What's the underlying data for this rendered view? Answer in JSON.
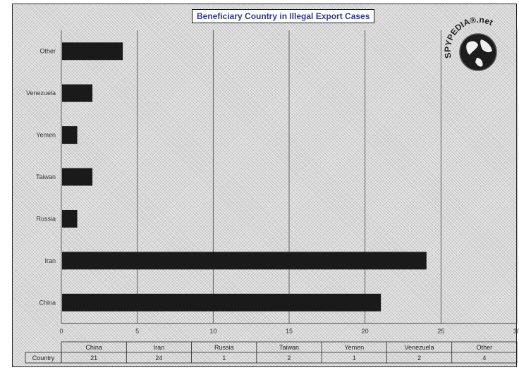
{
  "chart_data": {
    "type": "bar",
    "orientation": "horizontal",
    "title": "Beneficiary Country in Illegal Export Cases",
    "categories": [
      "China",
      "Iran",
      "Russia",
      "Taiwan",
      "Yemen",
      "Venezuela",
      "Other"
    ],
    "series": [
      {
        "name": "Country",
        "values": [
          21,
          24,
          1,
          2,
          1,
          2,
          4
        ]
      }
    ],
    "xlim": [
      0,
      30
    ],
    "xticks": [
      0,
      5,
      10,
      15,
      20,
      25,
      30
    ],
    "grid": true,
    "data_table": true,
    "bar_color": "#1a1a1a"
  },
  "watermark": {
    "text": "SPYPEDIA®.net",
    "icon": "globe-icon"
  }
}
